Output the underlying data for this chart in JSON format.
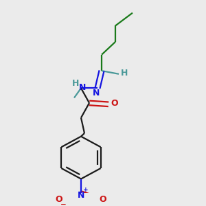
{
  "background_color": "#ebebeb",
  "bond_color": "#1a1a1a",
  "carbon_color": "#1a1a1a",
  "green_color": "#1a7a1a",
  "nitrogen_color": "#1414e0",
  "oxygen_color": "#cc1414",
  "teal_color": "#4a9999",
  "figsize": [
    3.0,
    3.0
  ],
  "dpi": 100,
  "xlim": [
    0,
    300
  ],
  "ylim": [
    0,
    300
  ]
}
